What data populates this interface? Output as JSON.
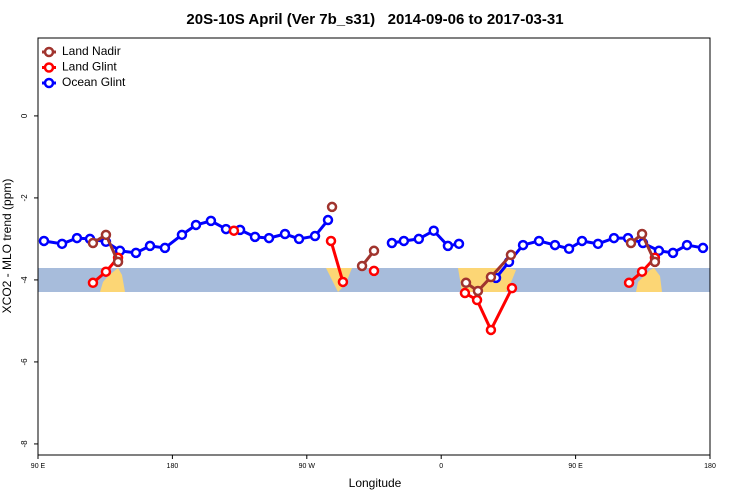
{
  "chart_data": {
    "type": "line",
    "title": "20S-10S April (Ver 7b_s31)   2014-09-06 to 2017-03-31",
    "xlabel": "Longitude",
    "ylabel": "XCO2 - MLO trend (ppm)",
    "xlim": [
      90,
      540
    ],
    "xticks": [
      {
        "value": 90,
        "label": "90 E"
      },
      {
        "value": 180,
        "label": "180"
      },
      {
        "value": 270,
        "label": "90 W"
      },
      {
        "value": 360,
        "label": "0"
      },
      {
        "value": 450,
        "label": "90 E"
      },
      {
        "value": 540,
        "label": "180"
      }
    ],
    "ylim": [
      -8.27,
      1.9
    ],
    "yticks": [
      0,
      -2,
      -4,
      -6,
      -8
    ],
    "legend": "top-left",
    "series": [
      {
        "name": "Land Nadir",
        "color": "#a0342e",
        "x": [
          126.8,
          135.5,
          143.6,
          null,
          286.9,
          null,
          307,
          315,
          null,
          376.6,
          384.6,
          393.3,
          406.7,
          null,
          487.1,
          494.5,
          503.1
        ],
        "values": [
          -3.1,
          -2.9,
          -3.56,
          null,
          -2.22,
          null,
          -3.66,
          -3.29,
          null,
          -4.07,
          -4.27,
          -3.93,
          -3.39,
          null,
          -3.1,
          -2.88,
          -3.56
        ]
      },
      {
        "name": "Land Glint",
        "color": "#ff0000",
        "x": [
          126.8,
          135.5,
          143.6,
          null,
          221.2,
          null,
          286.2,
          294.2,
          null,
          315,
          null,
          375.9,
          384,
          393.3,
          407.4,
          null,
          485.8,
          494.5,
          503.1
        ],
        "values": [
          -4.07,
          -3.8,
          -3.46,
          null,
          -2.8,
          null,
          -3.05,
          -4.05,
          null,
          -3.78,
          null,
          -4.32,
          -4.49,
          -5.22,
          -4.2,
          null,
          -4.07,
          -3.8,
          -3.46
        ]
      },
      {
        "name": "Ocean Glint",
        "color": "#0000ff",
        "x": [
          94,
          106.1,
          116.1,
          124.8,
          135.5,
          144.9,
          155.6,
          165,
          175,
          186.4,
          195.8,
          205.8,
          215.9,
          225.3,
          235.3,
          244.7,
          255.4,
          264.8,
          275.5,
          284.2,
          null,
          327,
          335,
          345,
          355,
          364.5,
          371.9,
          null,
          396.7,
          405.4,
          414.8,
          425.5,
          436.2,
          445.6,
          454.3,
          465,
          475.7,
          485.1,
          495.1,
          505.8,
          515.2,
          524.6,
          535.3
        ],
        "values": [
          -3.05,
          -3.12,
          -2.98,
          -3.0,
          -3.07,
          -3.29,
          -3.34,
          -3.17,
          -3.22,
          -2.9,
          -2.66,
          -2.56,
          -2.76,
          -2.78,
          -2.95,
          -2.98,
          -2.88,
          -3.0,
          -2.93,
          -2.54,
          null,
          -3.1,
          -3.05,
          -3.0,
          -2.8,
          -3.17,
          -3.12,
          null,
          -3.95,
          -3.56,
          -3.15,
          -3.05,
          -3.15,
          -3.24,
          -3.05,
          -3.12,
          -2.98,
          -2.98,
          -3.1,
          -3.29,
          -3.34,
          -3.15,
          -3.22
        ]
      }
    ]
  }
}
